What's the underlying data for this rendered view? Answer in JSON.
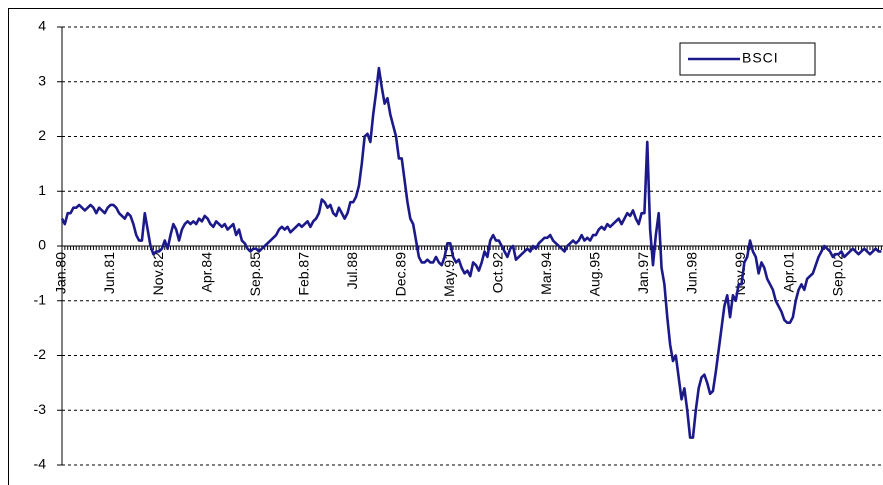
{
  "chart_data": {
    "type": "line",
    "categories": [
      "Jan.80",
      null,
      null,
      null,
      null,
      null,
      null,
      null,
      null,
      null,
      null,
      null,
      null,
      null,
      null,
      null,
      null,
      "Jun.81",
      null,
      null,
      null,
      null,
      null,
      null,
      null,
      null,
      null,
      null,
      null,
      null,
      null,
      null,
      null,
      null,
      "Nov.82",
      null,
      null,
      null,
      null,
      null,
      null,
      null,
      null,
      null,
      null,
      null,
      null,
      null,
      null,
      null,
      null,
      "Apr.84",
      null,
      null,
      null,
      null,
      null,
      null,
      null,
      null,
      null,
      null,
      null,
      null,
      null,
      null,
      null,
      null,
      "Sep.85",
      null,
      null,
      null,
      null,
      null,
      null,
      null,
      null,
      null,
      null,
      null,
      null,
      null,
      null,
      null,
      null,
      "Feb.87",
      null,
      null,
      null,
      null,
      null,
      null,
      null,
      null,
      null,
      null,
      null,
      null,
      null,
      null,
      null,
      null,
      "Jul.88",
      null,
      null,
      null,
      null,
      null,
      null,
      null,
      null,
      null,
      null,
      null,
      null,
      null,
      null,
      null,
      null,
      "Dec.89",
      null,
      null,
      null,
      null,
      null,
      null,
      null,
      null,
      null,
      null,
      null,
      null,
      null,
      null,
      null,
      null,
      "May.91",
      null,
      null,
      null,
      null,
      null,
      null,
      null,
      null,
      null,
      null,
      null,
      null,
      null,
      null,
      null,
      null,
      "Oct.92",
      null,
      null,
      null,
      null,
      null,
      null,
      null,
      null,
      null,
      null,
      null,
      null,
      null,
      null,
      null,
      null,
      "Mar.94",
      null,
      null,
      null,
      null,
      null,
      null,
      null,
      null,
      null,
      null,
      null,
      null,
      null,
      null,
      null,
      null,
      "Aug.95",
      null,
      null,
      null,
      null,
      null,
      null,
      null,
      null,
      null,
      null,
      null,
      null,
      null,
      null,
      null,
      null,
      "Jan.97",
      null,
      null,
      null,
      null,
      null,
      null,
      null,
      null,
      null,
      null,
      null,
      null,
      null,
      null,
      null,
      null,
      "Jun.98",
      null,
      null,
      null,
      null,
      null,
      null,
      null,
      null,
      null,
      null,
      null,
      null,
      null,
      null,
      null,
      null,
      "Nov.99",
      null,
      null,
      null,
      null,
      null,
      null,
      null,
      null,
      null,
      null,
      null,
      null,
      null,
      null,
      null,
      null,
      "Apr.01",
      null,
      null,
      null,
      null,
      null,
      null,
      null,
      null,
      null,
      null,
      null,
      null,
      null,
      null,
      null,
      null,
      "Sep.02",
      null,
      null,
      null,
      null,
      null,
      null,
      null,
      null,
      null,
      null,
      null,
      null,
      null,
      null,
      null
    ],
    "series": [
      {
        "name": "BSCI",
        "color": "#1c1a8a",
        "values": [
          0.5,
          0.4,
          0.6,
          0.6,
          0.7,
          0.7,
          0.75,
          0.7,
          0.65,
          0.7,
          0.75,
          0.7,
          0.6,
          0.7,
          0.65,
          0.6,
          0.7,
          0.75,
          0.75,
          0.7,
          0.6,
          0.55,
          0.5,
          0.6,
          0.55,
          0.4,
          0.2,
          0.1,
          0.1,
          0.6,
          0.3,
          0,
          -0.15,
          -0.1,
          -0.1,
          -0.05,
          0.1,
          -0.05,
          0.2,
          0.4,
          0.3,
          0.1,
          0.3,
          0.4,
          0.45,
          0.4,
          0.45,
          0.4,
          0.5,
          0.45,
          0.55,
          0.5,
          0.4,
          0.35,
          0.45,
          0.4,
          0.35,
          0.4,
          0.3,
          0.35,
          0.4,
          0.2,
          0.3,
          0.1,
          0.05,
          -0.05,
          -0.1,
          -0.05,
          -0.05,
          -0.1,
          -0.05,
          0,
          0.05,
          0.1,
          0.15,
          0.2,
          0.3,
          0.35,
          0.3,
          0.35,
          0.25,
          0.3,
          0.35,
          0.4,
          0.35,
          0.4,
          0.45,
          0.35,
          0.45,
          0.5,
          0.6,
          0.85,
          0.8,
          0.7,
          0.75,
          0.6,
          0.55,
          0.7,
          0.6,
          0.5,
          0.6,
          0.8,
          0.8,
          0.9,
          1.1,
          1.5,
          2.0,
          2.05,
          1.9,
          2.4,
          2.8,
          3.25,
          2.9,
          2.6,
          2.7,
          2.4,
          2.2,
          2.0,
          1.6,
          1.6,
          1.2,
          0.8,
          0.5,
          0.4,
          0.1,
          -0.2,
          -0.3,
          -0.3,
          -0.25,
          -0.3,
          -0.3,
          -0.2,
          -0.3,
          -0.35,
          -0.2,
          0.05,
          0.05,
          -0.2,
          -0.3,
          -0.25,
          -0.4,
          -0.5,
          -0.45,
          -0.55,
          -0.3,
          -0.35,
          -0.45,
          -0.3,
          -0.1,
          -0.2,
          0.1,
          0.2,
          0.1,
          0.1,
          0,
          -0.1,
          -0.2,
          -0.05,
          0,
          -0.25,
          -0.2,
          -0.15,
          -0.1,
          -0.05,
          -0.1,
          0,
          -0.05,
          0.05,
          0.1,
          0.15,
          0.15,
          0.2,
          0.1,
          0.05,
          0,
          -0.05,
          -0.1,
          0,
          0.05,
          0.1,
          0.05,
          0.1,
          0.2,
          0.1,
          0.15,
          0.1,
          0.2,
          0.2,
          0.3,
          0.35,
          0.3,
          0.4,
          0.35,
          0.4,
          0.45,
          0.5,
          0.4,
          0.5,
          0.6,
          0.55,
          0.65,
          0.5,
          0.4,
          0.6,
          0.6,
          1.9,
          0.3,
          -0.35,
          0.2,
          0.6,
          -0.4,
          -0.7,
          -1.3,
          -1.8,
          -2.1,
          -2.0,
          -2.4,
          -2.8,
          -2.6,
          -3.0,
          -3.5,
          -3.5,
          -3.0,
          -2.6,
          -2.4,
          -2.35,
          -2.5,
          -2.7,
          -2.65,
          -2.3,
          -1.9,
          -1.5,
          -1.1,
          -0.9,
          -1.3,
          -0.9,
          -1.0,
          -0.7,
          -0.7,
          -0.3,
          -0.2,
          0.1,
          -0.1,
          -0.2,
          -0.5,
          -0.3,
          -0.4,
          -0.6,
          -0.7,
          -0.8,
          -1.0,
          -1.1,
          -1.2,
          -1.35,
          -1.4,
          -1.4,
          -1.3,
          -1.0,
          -0.8,
          -0.7,
          -0.8,
          -0.6,
          -0.55,
          -0.5,
          -0.35,
          -0.2,
          -0.1,
          0,
          -0.05,
          -0.1,
          -0.2,
          -0.15,
          -0.15,
          -0.1,
          -0.2,
          -0.15,
          -0.1,
          -0.05,
          -0.1,
          -0.15,
          -0.1,
          -0.05,
          -0.1,
          -0.15,
          -0.1,
          -0.05,
          -0.1,
          -0.1
        ]
      }
    ],
    "ylim": [
      -4,
      4
    ],
    "yticks": [
      -4,
      -3,
      -2,
      -1,
      0,
      1,
      2,
      3,
      4
    ],
    "grid": true,
    "legend": "top-right"
  }
}
